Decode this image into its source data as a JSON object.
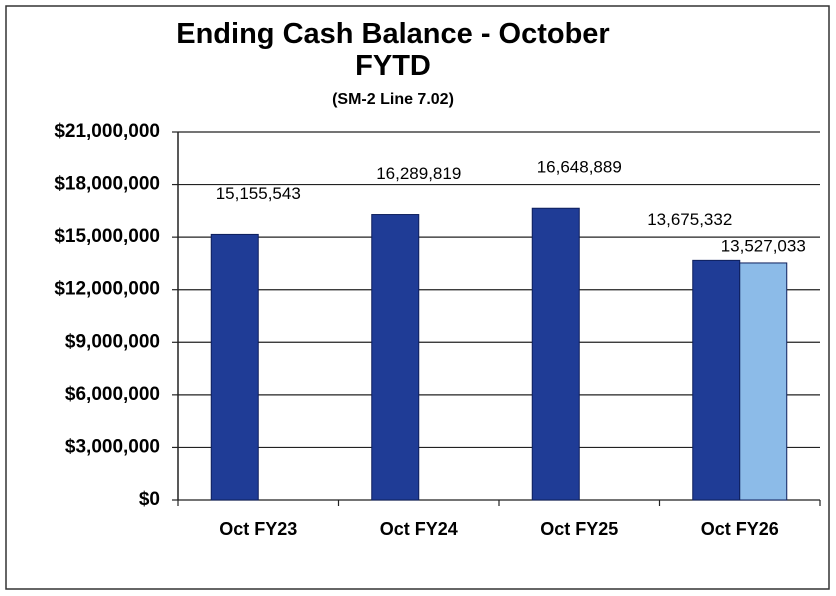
{
  "chart_data": {
    "type": "bar",
    "title": "Ending Cash Balance - October FYTD",
    "subtitle": "(SM-2 Line 7.02)",
    "categories": [
      "Oct FY23",
      "Oct FY24",
      "Oct FY25",
      "Oct FY26"
    ],
    "series": [
      {
        "color": "#1f3c96",
        "values": [
          15155543,
          16289819,
          16648889,
          13675332
        ],
        "value_labels": [
          "15,155,543",
          "16,289,819",
          "16,648,889",
          "13,675,332"
        ]
      },
      {
        "color": "#8cbbe8",
        "values": [
          null,
          null,
          null,
          13527033
        ],
        "value_labels": [
          null,
          null,
          null,
          "13,527,033"
        ]
      }
    ],
    "ylim": [
      0,
      21000000
    ],
    "yticks": [
      {
        "value": 0,
        "label": "$0"
      },
      {
        "value": 3000000,
        "label": "$3,000,000"
      },
      {
        "value": 6000000,
        "label": "$6,000,000"
      },
      {
        "value": 9000000,
        "label": "$9,000,000"
      },
      {
        "value": 12000000,
        "label": "$12,000,000"
      },
      {
        "value": 15000000,
        "label": "$15,000,000"
      },
      {
        "value": 18000000,
        "label": "$18,000,000"
      },
      {
        "value": 21000000,
        "label": "$21,000,000"
      }
    ],
    "grid": true
  }
}
